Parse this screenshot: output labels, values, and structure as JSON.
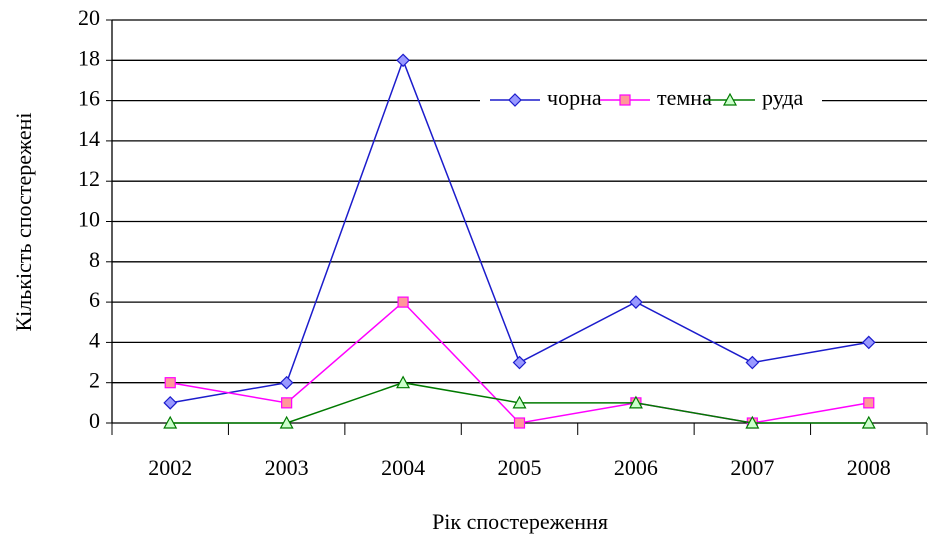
{
  "chart_data": {
    "type": "line",
    "xlabel": "Рік спостереження",
    "ylabel": "Кількість спостережені",
    "categories": [
      "2002",
      "2003",
      "2004",
      "2005",
      "2006",
      "2007",
      "2008"
    ],
    "series": [
      {
        "name": "чорна",
        "color": "#1c1ccc",
        "marker": "diamond",
        "marker_color": "#9999ff",
        "values": [
          1,
          2,
          18,
          3,
          6,
          3,
          4
        ]
      },
      {
        "name": "темна",
        "color": "#ff00ff",
        "marker": "square",
        "marker_color": "#ff9999",
        "values": [
          2,
          1,
          6,
          0,
          1,
          0,
          1
        ]
      },
      {
        "name": "руда",
        "color": "#007a00",
        "marker": "triangle",
        "marker_color": "#ccffcc",
        "values": [
          0,
          0,
          2,
          1,
          1,
          0,
          0
        ]
      }
    ],
    "ylim": [
      0,
      20
    ],
    "yticks": [
      0,
      2,
      4,
      6,
      8,
      10,
      12,
      14,
      16,
      18,
      20
    ],
    "grid": true,
    "legend": "upper right"
  }
}
